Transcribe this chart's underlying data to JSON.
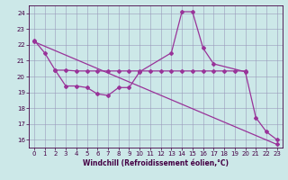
{
  "xlabel": "Windchill (Refroidissement éolien,°C)",
  "bg_color": "#cce8e8",
  "grid_color": "#9999bb",
  "line_color": "#993399",
  "xlim": [
    -0.5,
    23.5
  ],
  "ylim": [
    15.5,
    24.5
  ],
  "xticks": [
    0,
    1,
    2,
    3,
    4,
    5,
    6,
    7,
    8,
    9,
    10,
    11,
    12,
    13,
    14,
    15,
    16,
    17,
    18,
    19,
    20,
    21,
    22,
    23
  ],
  "yticks": [
    16,
    17,
    18,
    19,
    20,
    21,
    22,
    23,
    24
  ],
  "line1_x": [
    0,
    1,
    2,
    3,
    4,
    5,
    6,
    7,
    8,
    9,
    10,
    13,
    14,
    15,
    16,
    17,
    20,
    21,
    22,
    23
  ],
  "line1_y": [
    22.3,
    21.5,
    20.4,
    19.4,
    19.4,
    19.3,
    18.9,
    18.8,
    19.3,
    19.3,
    20.3,
    21.5,
    24.1,
    24.1,
    21.8,
    20.8,
    20.3,
    17.4,
    16.5,
    16.0
  ],
  "line2_x": [
    2,
    3,
    4,
    5,
    6,
    7,
    8,
    9,
    10,
    11,
    12,
    13,
    14,
    15,
    16,
    17,
    18,
    19,
    20
  ],
  "line2_y": [
    20.4,
    20.4,
    20.35,
    20.35,
    20.35,
    20.35,
    20.35,
    20.35,
    20.35,
    20.35,
    20.35,
    20.35,
    20.35,
    20.35,
    20.35,
    20.35,
    20.35,
    20.35,
    20.35
  ],
  "line3_x": [
    0,
    23
  ],
  "line3_y": [
    22.2,
    15.7
  ],
  "marker_size": 2.0,
  "linewidth": 0.9,
  "tick_fontsize": 5.0,
  "xlabel_fontsize": 5.5,
  "spine_color": "#440044",
  "tick_color": "#440044"
}
